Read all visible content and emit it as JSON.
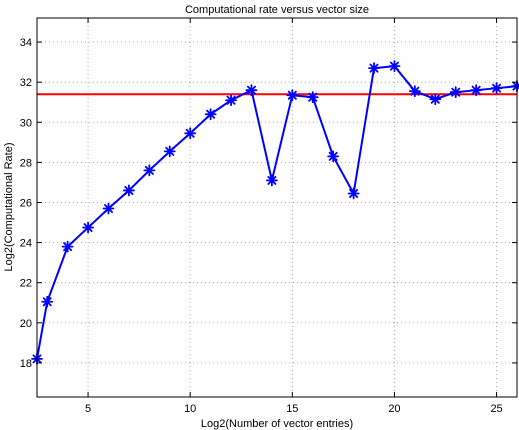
{
  "chart_data": {
    "type": "line",
    "title": "Computational rate versus vector size",
    "xlabel": "Log2(Number of vector entries)",
    "ylabel": "Log2(Computational Rate)",
    "xlim": [
      2.5,
      26
    ],
    "ylim": [
      16.3,
      35.2
    ],
    "xticks": [
      5,
      10,
      15,
      20,
      25
    ],
    "yticks": [
      18,
      20,
      22,
      24,
      26,
      28,
      30,
      32,
      34
    ],
    "grid": true,
    "series": [
      {
        "color": "#0000ff",
        "marker": "asterisk",
        "x": [
          2.5,
          3,
          4,
          5,
          6,
          7,
          8,
          9,
          10,
          11,
          12,
          13,
          14,
          15,
          16,
          17,
          18,
          19,
          20,
          21,
          22,
          23,
          24,
          25,
          26
        ],
        "y": [
          18.2,
          21.05,
          23.8,
          24.75,
          25.7,
          26.6,
          27.6,
          28.55,
          29.45,
          30.4,
          31.1,
          31.6,
          27.1,
          31.35,
          31.25,
          28.3,
          26.45,
          32.7,
          32.8,
          31.55,
          31.15,
          31.5,
          31.6,
          31.7,
          31.8
        ]
      }
    ],
    "reference_line": {
      "y": 31.4,
      "color": "#ff0000"
    }
  }
}
